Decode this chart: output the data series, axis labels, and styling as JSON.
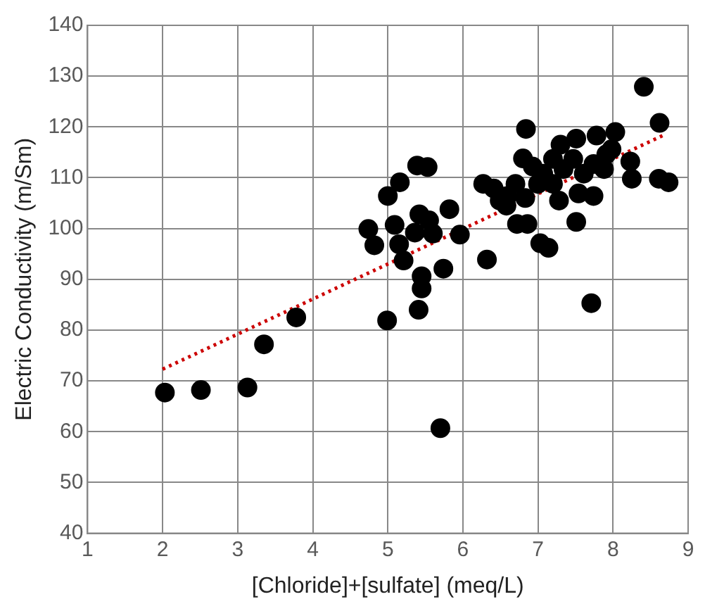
{
  "chart_data": {
    "type": "scatter",
    "xlabel": "[Chloride]+[sulfate] (meq/L)",
    "ylabel": "Electric Conductivity (m/Sm)",
    "xlim": [
      1,
      9
    ],
    "xticks": [
      1,
      2,
      3,
      4,
      5,
      6,
      7,
      8,
      9
    ],
    "ylim": [
      40,
      140
    ],
    "yticks": [
      40,
      50,
      60,
      70,
      80,
      90,
      100,
      110,
      120,
      130,
      140
    ],
    "grid": true,
    "marker": "circle",
    "series": [
      {
        "type": "scatter",
        "color": "#000000",
        "x": [
          2.03,
          2.51,
          3.13,
          3.35,
          3.78,
          4.99,
          5.7,
          5.41,
          5.45,
          5.45,
          5.74,
          6.32,
          7.71,
          4.74,
          4.82,
          5.0,
          5.16,
          5.39,
          5.53,
          5.09,
          5.15,
          5.21,
          5.42,
          5.36,
          5.55,
          5.6,
          5.82,
          5.96,
          6.27,
          6.41,
          6.58,
          6.7,
          6.84,
          6.8,
          6.72,
          6.86,
          7.03,
          7.14,
          6.93,
          7.07,
          7.2,
          7.3,
          7.51,
          7.78,
          8.03,
          7.28,
          7.51,
          7.54,
          7.74,
          7.61,
          7.88,
          7.98,
          8.23,
          8.25,
          8.41,
          8.62,
          8.61,
          8.74,
          7.0,
          7.2,
          7.34,
          7.47,
          7.74,
          7.91,
          6.83,
          6.59,
          6.49
        ],
        "values": [
          67.7,
          68.2,
          68.7,
          77.2,
          82.5,
          81.9,
          60.7,
          84.0,
          88.2,
          90.6,
          92.1,
          93.9,
          85.3,
          99.9,
          96.7,
          106.4,
          109.1,
          112.4,
          112.1,
          100.7,
          96.9,
          93.7,
          102.8,
          99.2,
          101.6,
          99.0,
          103.8,
          98.8,
          108.8,
          107.9,
          104.5,
          108.8,
          119.6,
          113.8,
          100.9,
          100.9,
          97.1,
          96.2,
          112.2,
          110.8,
          113.7,
          116.5,
          117.7,
          118.3,
          119.0,
          105.5,
          101.3,
          106.9,
          106.4,
          110.8,
          111.7,
          115.6,
          113.2,
          109.8,
          127.9,
          120.8,
          109.8,
          109.1,
          108.8,
          108.8,
          111.7,
          113.7,
          112.7,
          114.6,
          106.0,
          106.4,
          105.5
        ]
      },
      {
        "type": "line",
        "color": "#cc0000",
        "marker": "none",
        "line_style": "dotted",
        "x": [
          2,
          8.69
        ],
        "values": [
          72.3,
          118.5
        ]
      }
    ]
  }
}
